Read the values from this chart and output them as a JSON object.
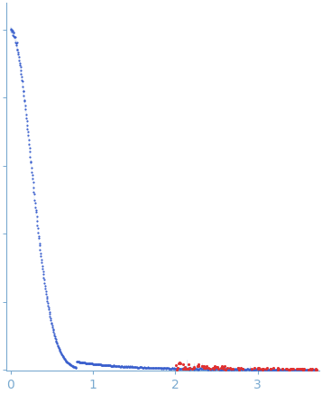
{
  "xlabel_ticks": [
    0,
    1,
    2,
    3
  ],
  "xlim": [
    -0.05,
    3.75
  ],
  "blue_color": "#3a5fcd",
  "light_blue_color": "#aec6e8",
  "red_color": "#e03030",
  "bg_color": "#FFFFFF",
  "axis_color": "#7aaad0",
  "tick_color": "#7aaad0",
  "seed": 77
}
